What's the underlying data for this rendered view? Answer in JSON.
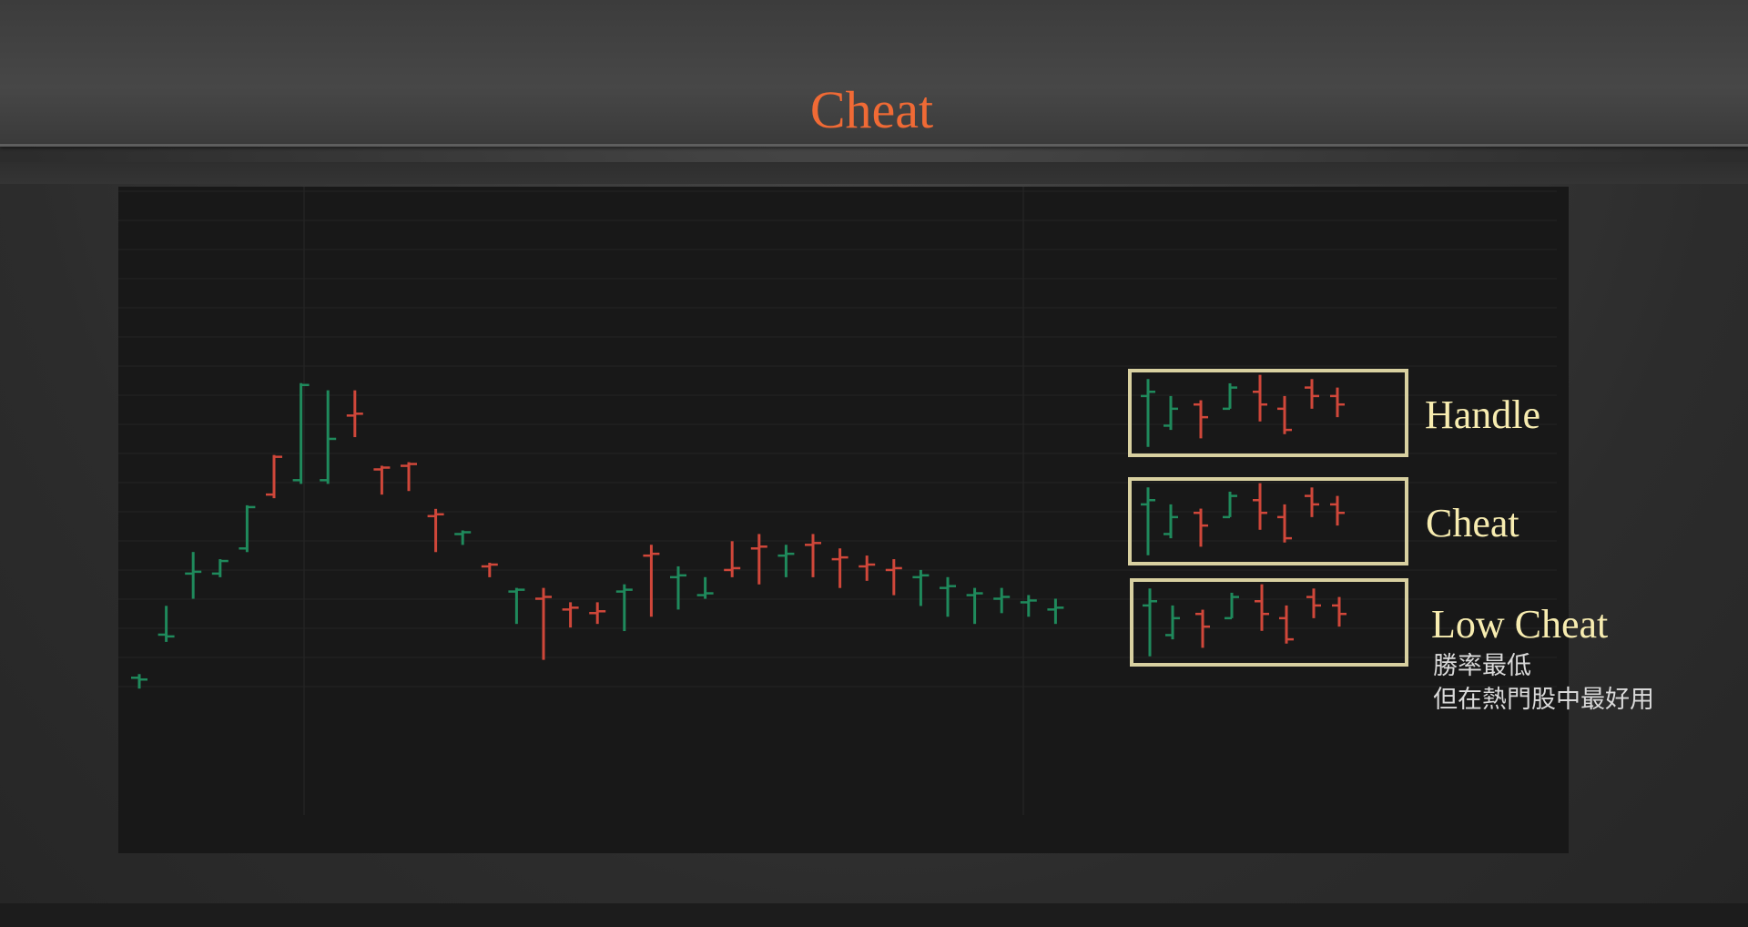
{
  "slide": {
    "title": "Cheat",
    "annotations": {
      "handle": "Handle",
      "cheat": "Cheat",
      "low_cheat": "Low Cheat",
      "note_line1": "勝率最低",
      "note_line2": "但在熱門股中最好用"
    }
  },
  "colors": {
    "title": "#f06a35",
    "up_bar": "#1f8a5c",
    "down_bar": "#d0473a",
    "box": "#d8d0a0",
    "label": "#f7ecb0"
  },
  "chart_data": {
    "type": "ohlc",
    "grid": true,
    "axes_labels": false,
    "main_bars": [
      {
        "o": 85,
        "h": 87,
        "l": 85,
        "c": 86
      },
      {
        "o": 73,
        "h": 74,
        "l": 66,
        "c": 74
      },
      {
        "o": 56,
        "h": 62,
        "l": 51,
        "c": 56
      },
      {
        "o": 56,
        "h": 55,
        "l": 53,
        "c": 53
      },
      {
        "o": 49,
        "h": 48,
        "l": 38,
        "c": 38
      },
      {
        "o": 34,
        "h": 29,
        "l": 24,
        "c": 24
      },
      {
        "o": 30,
        "h": 4,
        "l": 17,
        "c": 4
      },
      {
        "o": 30,
        "h": 19,
        "l": 6,
        "c": 19
      },
      {
        "o": 12,
        "h": 6,
        "l": 17,
        "c": 12
      },
      {
        "o": 27,
        "h": 33,
        "l": 31,
        "c": 27
      },
      {
        "o": 26,
        "h": 28,
        "l": 32,
        "c": 26
      },
      {
        "o": 40,
        "h": 39,
        "l": 49,
        "c": 40
      },
      {
        "o": 45,
        "h": 46,
        "l": 47,
        "c": 45
      },
      {
        "o": 54,
        "h": 56,
        "l": 55,
        "c": 54
      },
      {
        "o": 61,
        "h": 69,
        "l": 68,
        "c": 61
      },
      {
        "o": 63,
        "h": 79,
        "l": 61,
        "c": 63
      },
      {
        "o": 66,
        "h": 70,
        "l": 65,
        "c": 66
      },
      {
        "o": 67,
        "h": 69,
        "l": 65,
        "c": 67
      },
      {
        "o": 61,
        "h": 71,
        "l": 60,
        "c": 61
      },
      {
        "o": 51,
        "h": 67,
        "l": 49,
        "c": 51
      },
      {
        "o": 57,
        "h": 65,
        "l": 55,
        "c": 57
      },
      {
        "o": 62,
        "h": 62,
        "l": 58,
        "c": 62
      },
      {
        "o": 55,
        "h": 56,
        "l": 48,
        "c": 55
      },
      {
        "o": 49,
        "h": 58,
        "l": 46,
        "c": 49
      },
      {
        "o": 51,
        "h": 56,
        "l": 49,
        "c": 51
      },
      {
        "o": 48,
        "h": 56,
        "l": 46,
        "c": 48
      },
      {
        "o": 52,
        "h": 59,
        "l": 50,
        "c": 52
      },
      {
        "o": 54,
        "h": 57,
        "l": 52,
        "c": 54
      },
      {
        "o": 55,
        "h": 61,
        "l": 53,
        "c": 55
      },
      {
        "o": 57,
        "h": 64,
        "l": 56,
        "c": 57
      },
      {
        "o": 60,
        "h": 67,
        "l": 58,
        "c": 60
      },
      {
        "o": 62,
        "h": 69,
        "l": 61,
        "c": 62
      },
      {
        "o": 63,
        "h": 66,
        "l": 61,
        "c": 63
      },
      {
        "o": 64,
        "h": 67,
        "l": 63,
        "c": 64
      },
      {
        "o": 66,
        "h": 69,
        "l": 64,
        "c": 66
      }
    ]
  }
}
